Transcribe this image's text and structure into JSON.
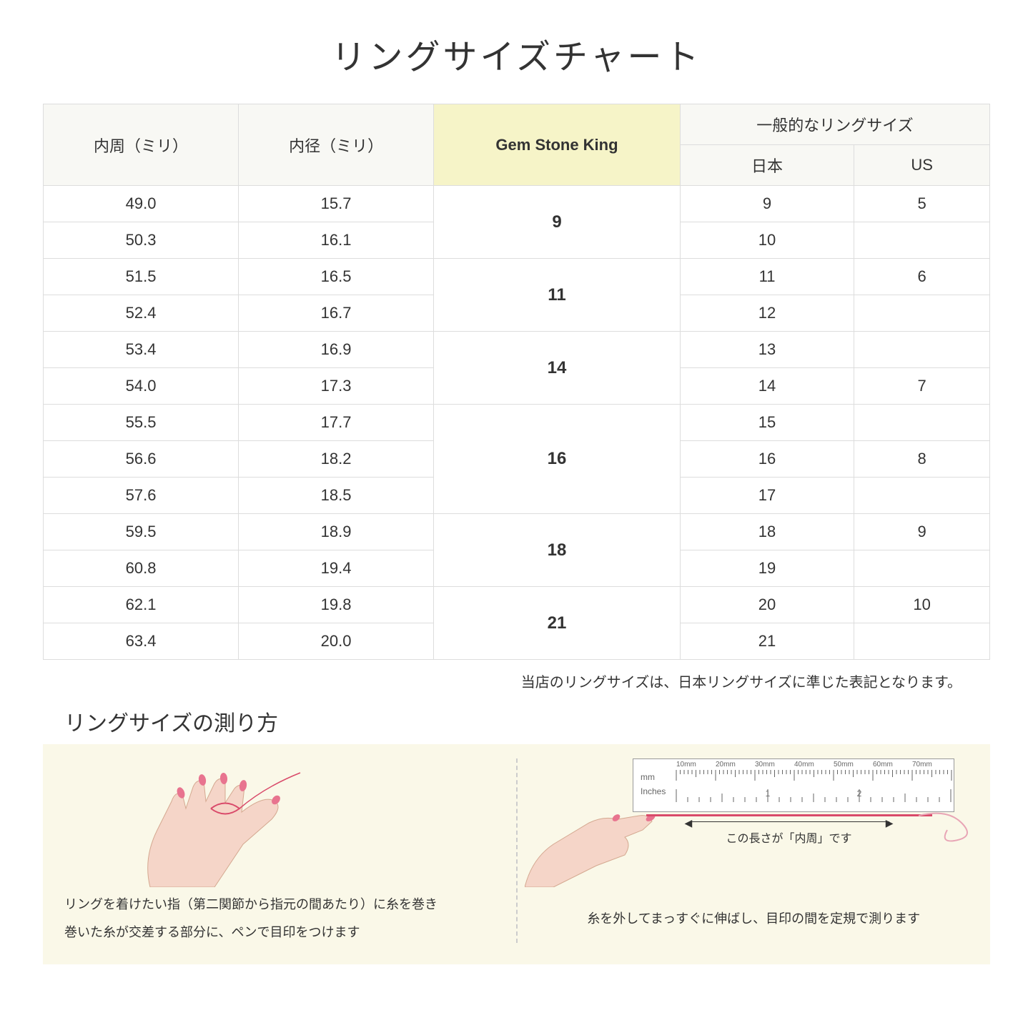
{
  "title": "リングサイズチャート",
  "table": {
    "headers": {
      "circumference": "内周（ミリ）",
      "diameter": "内径（ミリ）",
      "gsk": "Gem Stone King",
      "common": "一般的なリングサイズ",
      "japan": "日本",
      "us": "US"
    },
    "groups": [
      {
        "gsk": "9",
        "rows": [
          {
            "circ": "49.0",
            "diam": "15.7",
            "jp": "9",
            "us": "5"
          },
          {
            "circ": "50.3",
            "diam": "16.1",
            "jp": "10",
            "us": ""
          }
        ]
      },
      {
        "gsk": "11",
        "rows": [
          {
            "circ": "51.5",
            "diam": "16.5",
            "jp": "11",
            "us": "6"
          },
          {
            "circ": "52.4",
            "diam": "16.7",
            "jp": "12",
            "us": ""
          }
        ]
      },
      {
        "gsk": "14",
        "rows": [
          {
            "circ": "53.4",
            "diam": "16.9",
            "jp": "13",
            "us": ""
          },
          {
            "circ": "54.0",
            "diam": "17.3",
            "jp": "14",
            "us": "7"
          }
        ]
      },
      {
        "gsk": "16",
        "rows": [
          {
            "circ": "55.5",
            "diam": "17.7",
            "jp": "15",
            "us": ""
          },
          {
            "circ": "56.6",
            "diam": "18.2",
            "jp": "16",
            "us": "8"
          },
          {
            "circ": "57.6",
            "diam": "18.5",
            "jp": "17",
            "us": ""
          }
        ]
      },
      {
        "gsk": "18",
        "rows": [
          {
            "circ": "59.5",
            "diam": "18.9",
            "jp": "18",
            "us": "9"
          },
          {
            "circ": "60.8",
            "diam": "19.4",
            "jp": "19",
            "us": ""
          }
        ]
      },
      {
        "gsk": "21",
        "rows": [
          {
            "circ": "62.1",
            "diam": "19.8",
            "jp": "20",
            "us": "10"
          },
          {
            "circ": "63.4",
            "diam": "20.0",
            "jp": "21",
            "us": ""
          }
        ]
      }
    ]
  },
  "note": "当店のリングサイズは、日本リングサイズに準じた表記となります。",
  "subtitle": "リングサイズの測り方",
  "instructions": {
    "left": {
      "line1": "リングを着けたい指（第二関節から指元の間あたり）に糸を巻き",
      "line2": "巻いた糸が交差する部分に、ペンで目印をつけます"
    },
    "right": {
      "measure_label": "この長さが「内周」です",
      "text": "糸を外してまっすぐに伸ばし、目印の間を定規で測ります",
      "ruler_mm_label": "mm",
      "ruler_in_label": "Inches",
      "ruler_ticks": [
        "10mm",
        "20mm",
        "30mm",
        "40mm",
        "50mm",
        "60mm",
        "70mm"
      ],
      "ruler_inch_marks": [
        "1",
        "2"
      ]
    }
  },
  "colors": {
    "header_bg": "#f8f8f4",
    "highlight_bg": "#f6f4c8",
    "border": "#dddddd",
    "instruction_bg": "#faf8e8",
    "thread": "#d94a6a",
    "skin": "#f5d5c8",
    "nail": "#e8748f"
  }
}
